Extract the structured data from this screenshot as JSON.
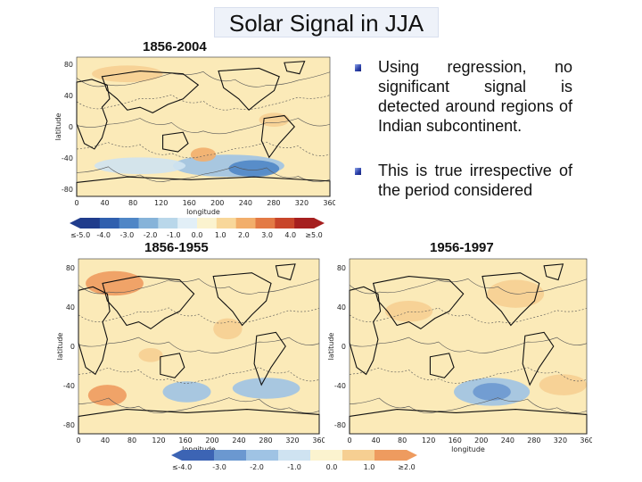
{
  "title": "Solar Signal in JJA",
  "panels": {
    "p1": {
      "period": "1856-2004",
      "yticks": [
        "80",
        "40",
        "0",
        "-40",
        "-80"
      ],
      "xticks": [
        "0",
        "40",
        "80",
        "120",
        "160",
        "200",
        "240",
        "280",
        "320",
        "360"
      ],
      "xlabel": "longitude",
      "ylabel": "latitude"
    },
    "p2": {
      "period": "1856-1955",
      "yticks": [
        "80",
        "40",
        "0",
        "-40",
        "-80"
      ],
      "xticks": [
        "0",
        "40",
        "80",
        "120",
        "160",
        "200",
        "240",
        "280",
        "320",
        "360"
      ],
      "xlabel": "longitude",
      "ylabel": "latitude"
    },
    "p3": {
      "period": "1956-1997",
      "yticks": [
        "80",
        "40",
        "0",
        "-40",
        "-80"
      ],
      "xticks": [
        "0",
        "40",
        "80",
        "120",
        "160",
        "200",
        "240",
        "280",
        "320",
        "360"
      ],
      "xlabel": "longitude",
      "ylabel": "latitude"
    }
  },
  "colorbar_top": {
    "labels": [
      "≤-5.0",
      "-4.0",
      "-3.0",
      "-2.0",
      "-1.0",
      "0.0",
      "1.0",
      "2.0",
      "3.0",
      "4.0",
      "≥5.0"
    ],
    "colors": [
      "#203c8c",
      "#2f5fae",
      "#4f86c6",
      "#86b3d9",
      "#b9d7ea",
      "#e2eff7",
      "#fbf3cf",
      "#f8d79a",
      "#f2ae6b",
      "#e37a45",
      "#c8452a",
      "#a61f1f"
    ]
  },
  "colorbar_bottom": {
    "labels": [
      "≤-4.0",
      "-3.0",
      "-2.0",
      "-1.0",
      "0.0",
      "1.0",
      "≥2.0"
    ],
    "colors": [
      "#3c64b4",
      "#6b98d0",
      "#9fc3e4",
      "#cfe3f1",
      "#fbf3cf",
      "#f6cf92",
      "#ee9b5f"
    ]
  },
  "bullets": [
    "Using regression, no significant signal is detected around regions of Indian subcontinent.",
    "This is true irrespective of the period considered"
  ],
  "colors": {
    "warm": "#fbeab8",
    "cool": "#b9d7ea",
    "land": "#111111"
  }
}
